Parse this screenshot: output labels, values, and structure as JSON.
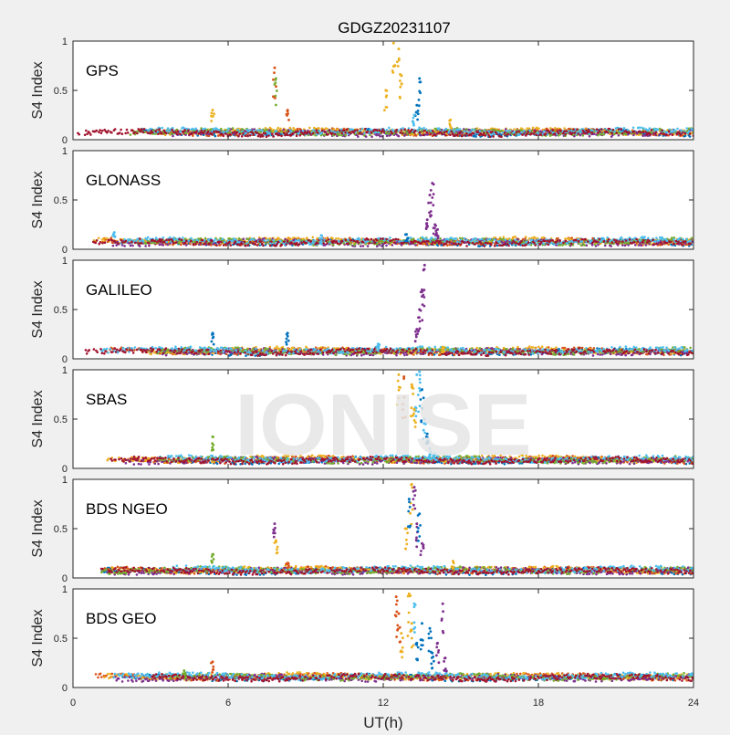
{
  "figure": {
    "title": "GDGZ20231107",
    "xlabel": "UT(h)",
    "watermark": "IONISE"
  },
  "colors": {
    "background": "#f0f0f0",
    "axes_background": "#ffffff",
    "axis": "#262626",
    "watermark": "#e6e6e6",
    "series": [
      "#0072BD",
      "#D95319",
      "#EDB120",
      "#7E2F8E",
      "#77AC30",
      "#4DBEEE",
      "#A2142F"
    ]
  },
  "chart_data": [
    {
      "type": "scatter",
      "label": "GPS",
      "ylabel": "S4 Index",
      "xlim": [
        0,
        24
      ],
      "ylim": [
        0,
        1
      ],
      "yticks": [
        "0",
        "0.5",
        "1"
      ],
      "xticks": [],
      "baseline": 0.07,
      "spikes": [
        {
          "x": 5.4,
          "y": 0.3,
          "color": 2
        },
        {
          "x": 7.8,
          "y": 0.73,
          "color": 1
        },
        {
          "x": 7.85,
          "y": 0.62,
          "color": 4
        },
        {
          "x": 8.3,
          "y": 0.3,
          "color": 1
        },
        {
          "x": 12.1,
          "y": 0.5,
          "color": 2
        },
        {
          "x": 12.4,
          "y": 0.98,
          "color": 2
        },
        {
          "x": 12.6,
          "y": 0.92,
          "color": 2
        },
        {
          "x": 12.7,
          "y": 0.65,
          "color": 2
        },
        {
          "x": 13.4,
          "y": 0.62,
          "color": 0
        },
        {
          "x": 13.3,
          "y": 0.35,
          "color": 0
        },
        {
          "x": 13.2,
          "y": 0.25,
          "color": 5
        },
        {
          "x": 14.6,
          "y": 0.2,
          "color": 2
        }
      ]
    },
    {
      "type": "scatter",
      "label": "GLONASS",
      "ylabel": "S4 Index",
      "xlim": [
        0,
        24
      ],
      "ylim": [
        0,
        1
      ],
      "yticks": [
        "0",
        "0.5",
        "1"
      ],
      "xticks": [],
      "baseline": 0.07,
      "spikes": [
        {
          "x": 1.6,
          "y": 0.17,
          "color": 5
        },
        {
          "x": 9.6,
          "y": 0.14,
          "color": 5
        },
        {
          "x": 13.9,
          "y": 0.67,
          "color": 3
        },
        {
          "x": 13.8,
          "y": 0.55,
          "color": 3
        },
        {
          "x": 13.7,
          "y": 0.3,
          "color": 3
        },
        {
          "x": 14.0,
          "y": 0.25,
          "color": 3
        },
        {
          "x": 14.1,
          "y": 0.2,
          "color": 3
        },
        {
          "x": 12.9,
          "y": 0.15,
          "color": 0
        }
      ]
    },
    {
      "type": "scatter",
      "label": "GALILEO",
      "ylabel": "S4 Index",
      "xlim": [
        0,
        24
      ],
      "ylim": [
        0,
        1
      ],
      "yticks": [
        "0",
        "0.5",
        "1"
      ],
      "xticks": [],
      "baseline": 0.07,
      "spikes": [
        {
          "x": 5.4,
          "y": 0.26,
          "color": 0
        },
        {
          "x": 8.3,
          "y": 0.26,
          "color": 0
        },
        {
          "x": 13.6,
          "y": 0.95,
          "color": 3
        },
        {
          "x": 13.5,
          "y": 0.7,
          "color": 3
        },
        {
          "x": 13.4,
          "y": 0.5,
          "color": 3
        },
        {
          "x": 13.3,
          "y": 0.3,
          "color": 3
        },
        {
          "x": 14.3,
          "y": 0.12,
          "color": 2
        },
        {
          "x": 11.8,
          "y": 0.15,
          "color": 5
        }
      ]
    },
    {
      "type": "scatter",
      "label": "SBAS",
      "ylabel": "S4 Index",
      "xlim": [
        0,
        24
      ],
      "ylim": [
        0,
        1
      ],
      "yticks": [
        "0",
        "0.5",
        "1"
      ],
      "xticks": [],
      "baseline": 0.08,
      "spikes": [
        {
          "x": 5.4,
          "y": 0.32,
          "color": 4
        },
        {
          "x": 12.6,
          "y": 0.95,
          "color": 2
        },
        {
          "x": 12.8,
          "y": 0.93,
          "color": 1
        },
        {
          "x": 13.1,
          "y": 0.85,
          "color": 2
        },
        {
          "x": 13.3,
          "y": 0.95,
          "color": 5
        },
        {
          "x": 13.4,
          "y": 0.98,
          "color": 5
        },
        {
          "x": 13.5,
          "y": 0.8,
          "color": 0
        },
        {
          "x": 13.2,
          "y": 0.6,
          "color": 2
        },
        {
          "x": 13.6,
          "y": 0.5,
          "color": 5
        },
        {
          "x": 13.7,
          "y": 0.35,
          "color": 0
        },
        {
          "x": 13.8,
          "y": 0.2,
          "color": 5
        },
        {
          "x": 14.0,
          "y": 0.15,
          "color": 5
        }
      ]
    },
    {
      "type": "scatter",
      "label": "BDS NGEO",
      "ylabel": "S4 Index",
      "xlim": [
        0,
        24
      ],
      "ylim": [
        0,
        1
      ],
      "yticks": [
        "0",
        "0.5",
        "1"
      ],
      "xticks": [],
      "baseline": 0.07,
      "spikes": [
        {
          "x": 5.4,
          "y": 0.24,
          "color": 4
        },
        {
          "x": 7.8,
          "y": 0.55,
          "color": 3
        },
        {
          "x": 7.85,
          "y": 0.38,
          "color": 2
        },
        {
          "x": 8.3,
          "y": 0.15,
          "color": 1
        },
        {
          "x": 13.1,
          "y": 0.95,
          "color": 2
        },
        {
          "x": 13.2,
          "y": 0.92,
          "color": 3
        },
        {
          "x": 13.0,
          "y": 0.8,
          "color": 0
        },
        {
          "x": 12.9,
          "y": 0.5,
          "color": 2
        },
        {
          "x": 13.3,
          "y": 0.55,
          "color": 3
        },
        {
          "x": 13.5,
          "y": 0.35,
          "color": 3
        },
        {
          "x": 13.4,
          "y": 0.65,
          "color": 0
        },
        {
          "x": 14.7,
          "y": 0.17,
          "color": 2
        }
      ]
    },
    {
      "type": "scatter",
      "label": "BDS GEO",
      "ylabel": "S4 Index",
      "xlim": [
        0,
        24
      ],
      "ylim": [
        0,
        1
      ],
      "yticks": [
        "0",
        "0.5",
        "1"
      ],
      "xticks": [
        "0",
        "6",
        "12",
        "18",
        "24"
      ],
      "baseline": 0.1,
      "spikes": [
        {
          "x": 4.3,
          "y": 0.17,
          "color": 4
        },
        {
          "x": 5.4,
          "y": 0.26,
          "color": 1
        },
        {
          "x": 12.5,
          "y": 0.92,
          "color": 1
        },
        {
          "x": 12.6,
          "y": 0.75,
          "color": 1
        },
        {
          "x": 12.7,
          "y": 0.55,
          "color": 2
        },
        {
          "x": 13.0,
          "y": 0.95,
          "color": 2
        },
        {
          "x": 13.2,
          "y": 0.85,
          "color": 5
        },
        {
          "x": 13.1,
          "y": 0.65,
          "color": 2
        },
        {
          "x": 13.3,
          "y": 0.45,
          "color": 0
        },
        {
          "x": 13.5,
          "y": 0.65,
          "color": 0
        },
        {
          "x": 13.8,
          "y": 0.6,
          "color": 0
        },
        {
          "x": 14.1,
          "y": 0.45,
          "color": 3
        },
        {
          "x": 14.3,
          "y": 0.85,
          "color": 3
        },
        {
          "x": 14.4,
          "y": 0.3,
          "color": 3
        },
        {
          "x": 13.9,
          "y": 0.35,
          "color": 0
        }
      ]
    }
  ]
}
